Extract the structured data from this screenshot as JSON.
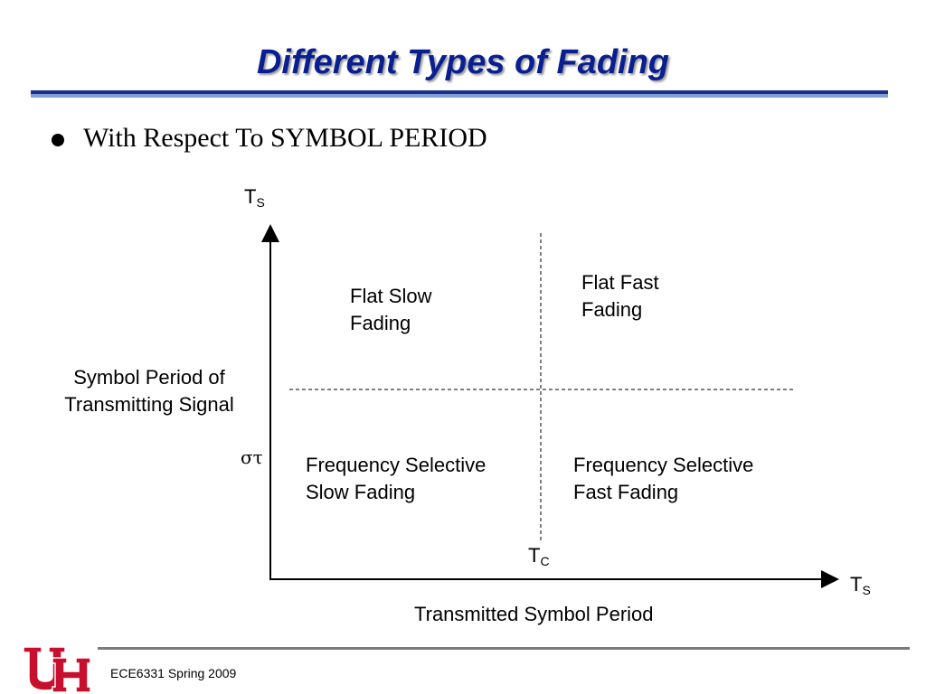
{
  "slide": {
    "title": "Different Types of Fading",
    "bullet": "With Respect To SYMBOL PERIOD"
  },
  "diagram": {
    "y_axis_symbol": {
      "main": "T",
      "sub": "S"
    },
    "x_axis_symbol": {
      "main": "T",
      "sub": "C"
    },
    "x_axis_end_symbol": {
      "main": "T",
      "sub": "S"
    },
    "sigma_label": "στ",
    "y_axis_label": "Symbol Period of\nTransmitting Signal",
    "x_axis_label": "Transmitted Symbol Period",
    "quadrants": {
      "top_left": "Flat Slow\nFading",
      "top_right": "Flat Fast\nFading",
      "bottom_left": "Frequency Selective\nSlow Fading",
      "bottom_right": "Frequency Selective\nFast Fading"
    }
  },
  "footer": {
    "text": "ECE6331 Spring 2009"
  },
  "colors": {
    "title": "#0a1f8f",
    "rule_dark": "#1b2e8a",
    "rule_light": "#7f9fd6",
    "logo_red": "#c8102e"
  }
}
